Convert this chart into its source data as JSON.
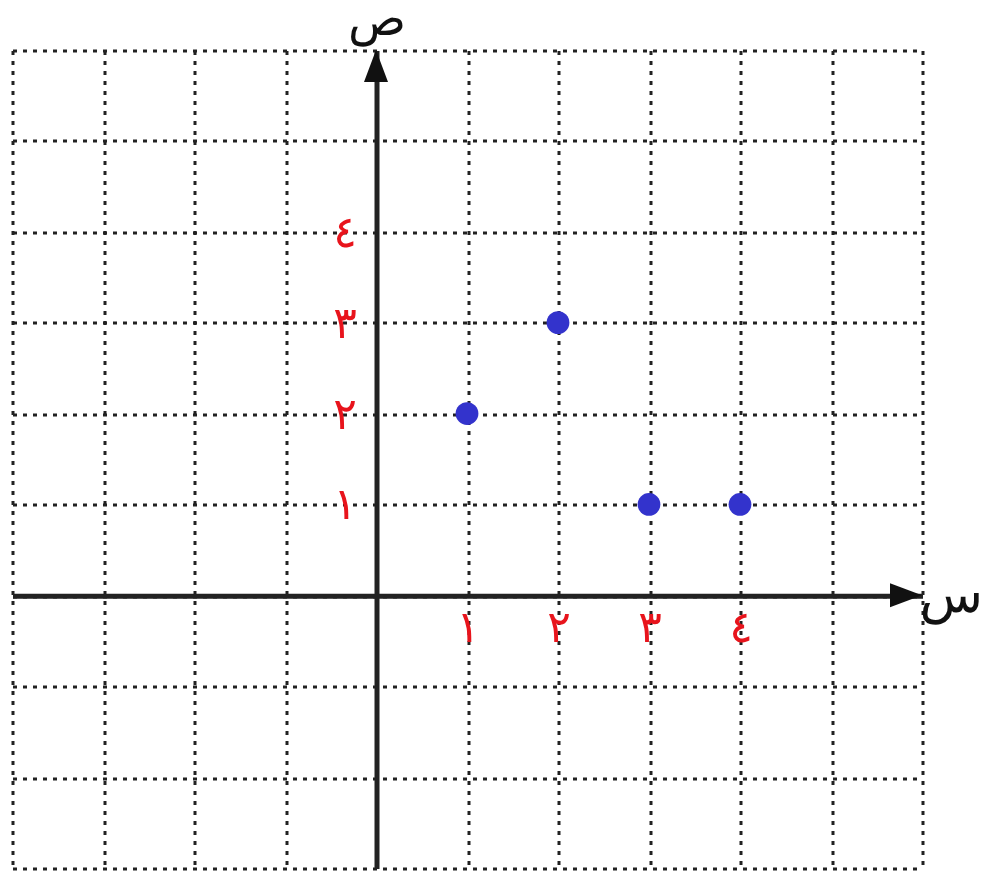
{
  "chart_data": {
    "type": "scatter",
    "xlabel": "س",
    "ylabel": "ص",
    "x": [
      1,
      2,
      3,
      4
    ],
    "series": [
      {
        "color": "#3333cc",
        "values": [
          2,
          3,
          1,
          1
        ]
      }
    ],
    "xlim": [
      -4,
      6
    ],
    "ylim": [
      -3,
      6
    ],
    "xticks": [
      {
        "value": -4,
        "label": null
      },
      {
        "value": -3,
        "label": null
      },
      {
        "value": -2,
        "label": null
      },
      {
        "value": -1,
        "label": null
      },
      {
        "value": 0,
        "label": null
      },
      {
        "value": 1,
        "label": "١"
      },
      {
        "value": 2,
        "label": "٢"
      },
      {
        "value": 3,
        "label": "٣"
      },
      {
        "value": 4,
        "label": "٤"
      },
      {
        "value": 5,
        "label": null
      },
      {
        "value": 6,
        "label": null
      }
    ],
    "yticks": [
      {
        "value": -3,
        "label": null
      },
      {
        "value": -2,
        "label": null
      },
      {
        "value": -1,
        "label": null
      },
      {
        "value": 0,
        "label": null
      },
      {
        "value": 1,
        "label": "١"
      },
      {
        "value": 2,
        "label": "٢"
      },
      {
        "value": 3,
        "label": "٣"
      },
      {
        "value": 4,
        "label": "٤"
      },
      {
        "value": 5,
        "label": null
      },
      {
        "value": 6,
        "label": null
      }
    ],
    "grid": true,
    "marker": "circle"
  }
}
